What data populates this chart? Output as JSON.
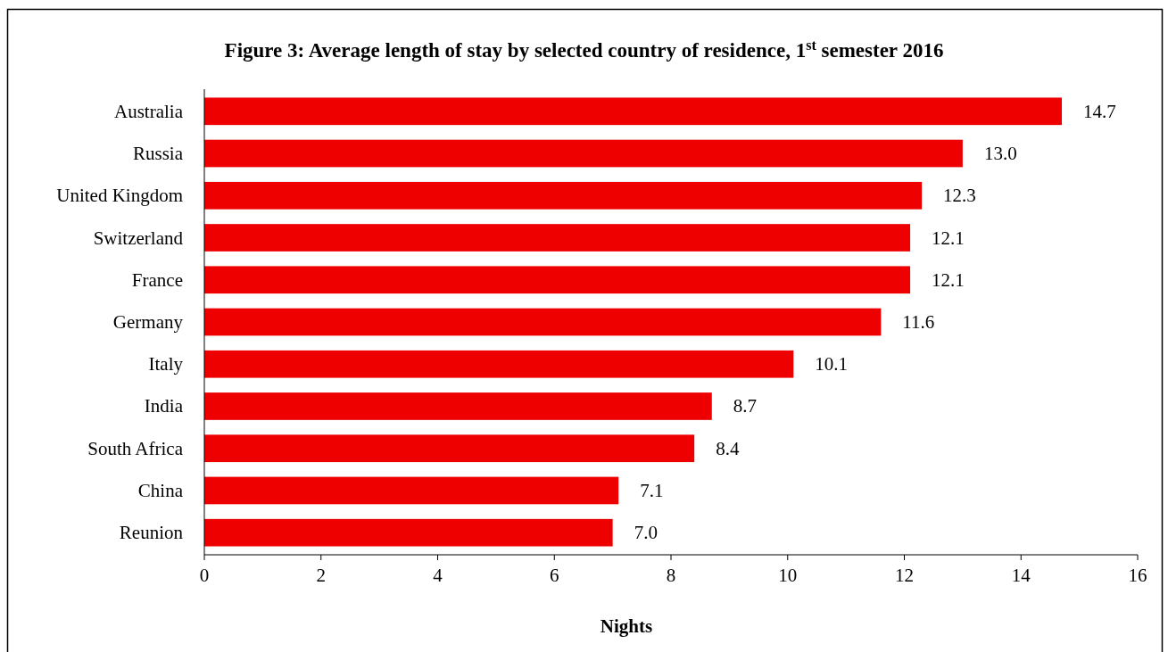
{
  "chart_data": {
    "type": "bar",
    "orientation": "horizontal",
    "title": "Figure 3: Average length of stay by selected country of residence, 1$^{st}$ semester 2016",
    "xlabel": "Nights",
    "categories": [
      "Australia",
      "Russia",
      "United Kingdom",
      "Switzerland",
      "France",
      "Germany",
      "Italy",
      "India",
      "South Africa",
      "China",
      "Reunion"
    ],
    "values": [
      14.7,
      13.0,
      12.3,
      12.1,
      12.1,
      11.6,
      10.1,
      8.7,
      8.4,
      7.1,
      7.0
    ],
    "color": "#ee0000",
    "xlim": [
      0,
      16
    ],
    "xticks": [
      0,
      2,
      4,
      6,
      8,
      10,
      12,
      14,
      16
    ],
    "value_labels": [
      "14.7",
      "13.0",
      "12.3",
      "12.1",
      "12.1",
      "11.6",
      "10.1",
      "8.7",
      "8.4",
      "7.1",
      "7.0"
    ],
    "grid": false
  }
}
